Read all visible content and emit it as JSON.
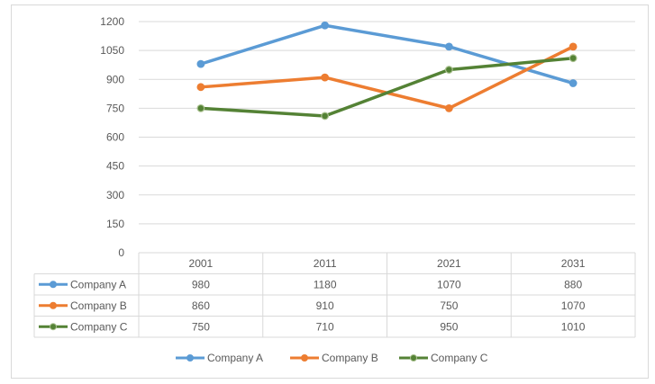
{
  "chart_data": {
    "type": "line",
    "categories": [
      "2001",
      "2011",
      "2021",
      "2031"
    ],
    "series": [
      {
        "name": "Company A",
        "values": [
          980,
          1180,
          1070,
          880
        ],
        "color": "#5b9bd5"
      },
      {
        "name": "Company B",
        "values": [
          860,
          910,
          750,
          1070
        ],
        "color": "#ed7d31"
      },
      {
        "name": "Company C",
        "values": [
          750,
          710,
          950,
          1010
        ],
        "color": "#548235"
      }
    ],
    "yticks": [
      0,
      150,
      300,
      450,
      600,
      750,
      900,
      1050,
      1200
    ],
    "ylim": [
      0,
      1200
    ],
    "grid": true,
    "data_table": true,
    "legend": "bottom"
  }
}
